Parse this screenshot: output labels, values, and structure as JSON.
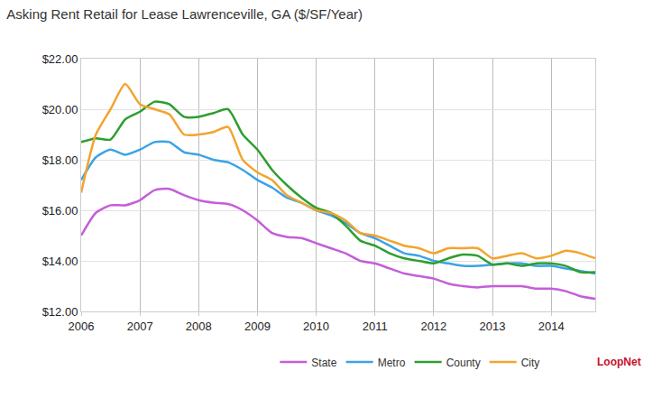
{
  "chart_data": {
    "type": "line",
    "title": "Asking Rent Retail for Lease Lawrenceville, GA ($/SF/Year)",
    "annotations": [
      "LoopNet"
    ],
    "x": [
      2006,
      2006.25,
      2006.5,
      2006.75,
      2007,
      2007.25,
      2007.5,
      2007.75,
      2008,
      2008.25,
      2008.5,
      2008.75,
      2009,
      2009.25,
      2009.5,
      2009.75,
      2010,
      2010.25,
      2010.5,
      2010.75,
      2011,
      2011.25,
      2011.5,
      2011.75,
      2012,
      2012.25,
      2012.5,
      2012.75,
      2013,
      2013.25,
      2013.5,
      2013.75,
      2014,
      2014.25,
      2014.5,
      2014.75
    ],
    "series": [
      {
        "name": "State",
        "color": "#c45ed8",
        "values": [
          15.0,
          15.9,
          16.2,
          16.2,
          16.4,
          16.8,
          16.85,
          16.6,
          16.4,
          16.3,
          16.25,
          16.0,
          15.6,
          15.1,
          14.95,
          14.9,
          14.7,
          14.5,
          14.3,
          14.0,
          13.9,
          13.7,
          13.5,
          13.4,
          13.3,
          13.1,
          13.0,
          12.95,
          13.0,
          13.0,
          13.0,
          12.9,
          12.9,
          12.8,
          12.6,
          12.5
        ]
      },
      {
        "name": "Metro",
        "color": "#3ba3e6",
        "values": [
          17.2,
          18.1,
          18.4,
          18.2,
          18.4,
          18.7,
          18.7,
          18.3,
          18.2,
          18.0,
          17.9,
          17.6,
          17.2,
          16.9,
          16.5,
          16.3,
          16.0,
          15.8,
          15.5,
          15.1,
          14.9,
          14.6,
          14.3,
          14.2,
          14.0,
          13.9,
          13.8,
          13.8,
          13.85,
          13.9,
          13.9,
          13.8,
          13.8,
          13.7,
          13.6,
          13.5
        ]
      },
      {
        "name": "County",
        "color": "#2e9e2e",
        "values": [
          18.7,
          18.85,
          18.8,
          19.6,
          19.9,
          20.3,
          20.2,
          19.7,
          19.7,
          19.85,
          20.0,
          19.0,
          18.4,
          17.6,
          17.0,
          16.5,
          16.1,
          15.9,
          15.4,
          14.8,
          14.6,
          14.3,
          14.1,
          14.0,
          13.9,
          14.1,
          14.25,
          14.2,
          13.85,
          13.9,
          13.8,
          13.9,
          13.9,
          13.8,
          13.55,
          13.55
        ]
      },
      {
        "name": "City",
        "color": "#f2a42e",
        "values": [
          16.7,
          19.0,
          20.0,
          21.0,
          20.2,
          20.0,
          19.8,
          19.0,
          19.0,
          19.1,
          19.3,
          18.0,
          17.5,
          17.2,
          16.6,
          16.3,
          16.0,
          15.9,
          15.6,
          15.1,
          15.0,
          14.8,
          14.6,
          14.5,
          14.3,
          14.5,
          14.5,
          14.5,
          14.1,
          14.2,
          14.3,
          14.1,
          14.2,
          14.4,
          14.3,
          14.1
        ]
      }
    ],
    "xlim": [
      2006,
      2014.75
    ],
    "xticks": [
      2006,
      2007,
      2008,
      2009,
      2010,
      2011,
      2012,
      2013,
      2014
    ],
    "ylim": [
      12,
      22
    ],
    "yticks": [
      {
        "value": 12,
        "label": "$12.00"
      },
      {
        "value": 14,
        "label": "$14.00"
      },
      {
        "value": 16,
        "label": "$16.00"
      },
      {
        "value": 18,
        "label": "$18.00"
      },
      {
        "value": 20,
        "label": "$20.00"
      },
      {
        "value": 22,
        "label": "$22.00"
      }
    ],
    "grid": true,
    "legend": "bottom"
  }
}
